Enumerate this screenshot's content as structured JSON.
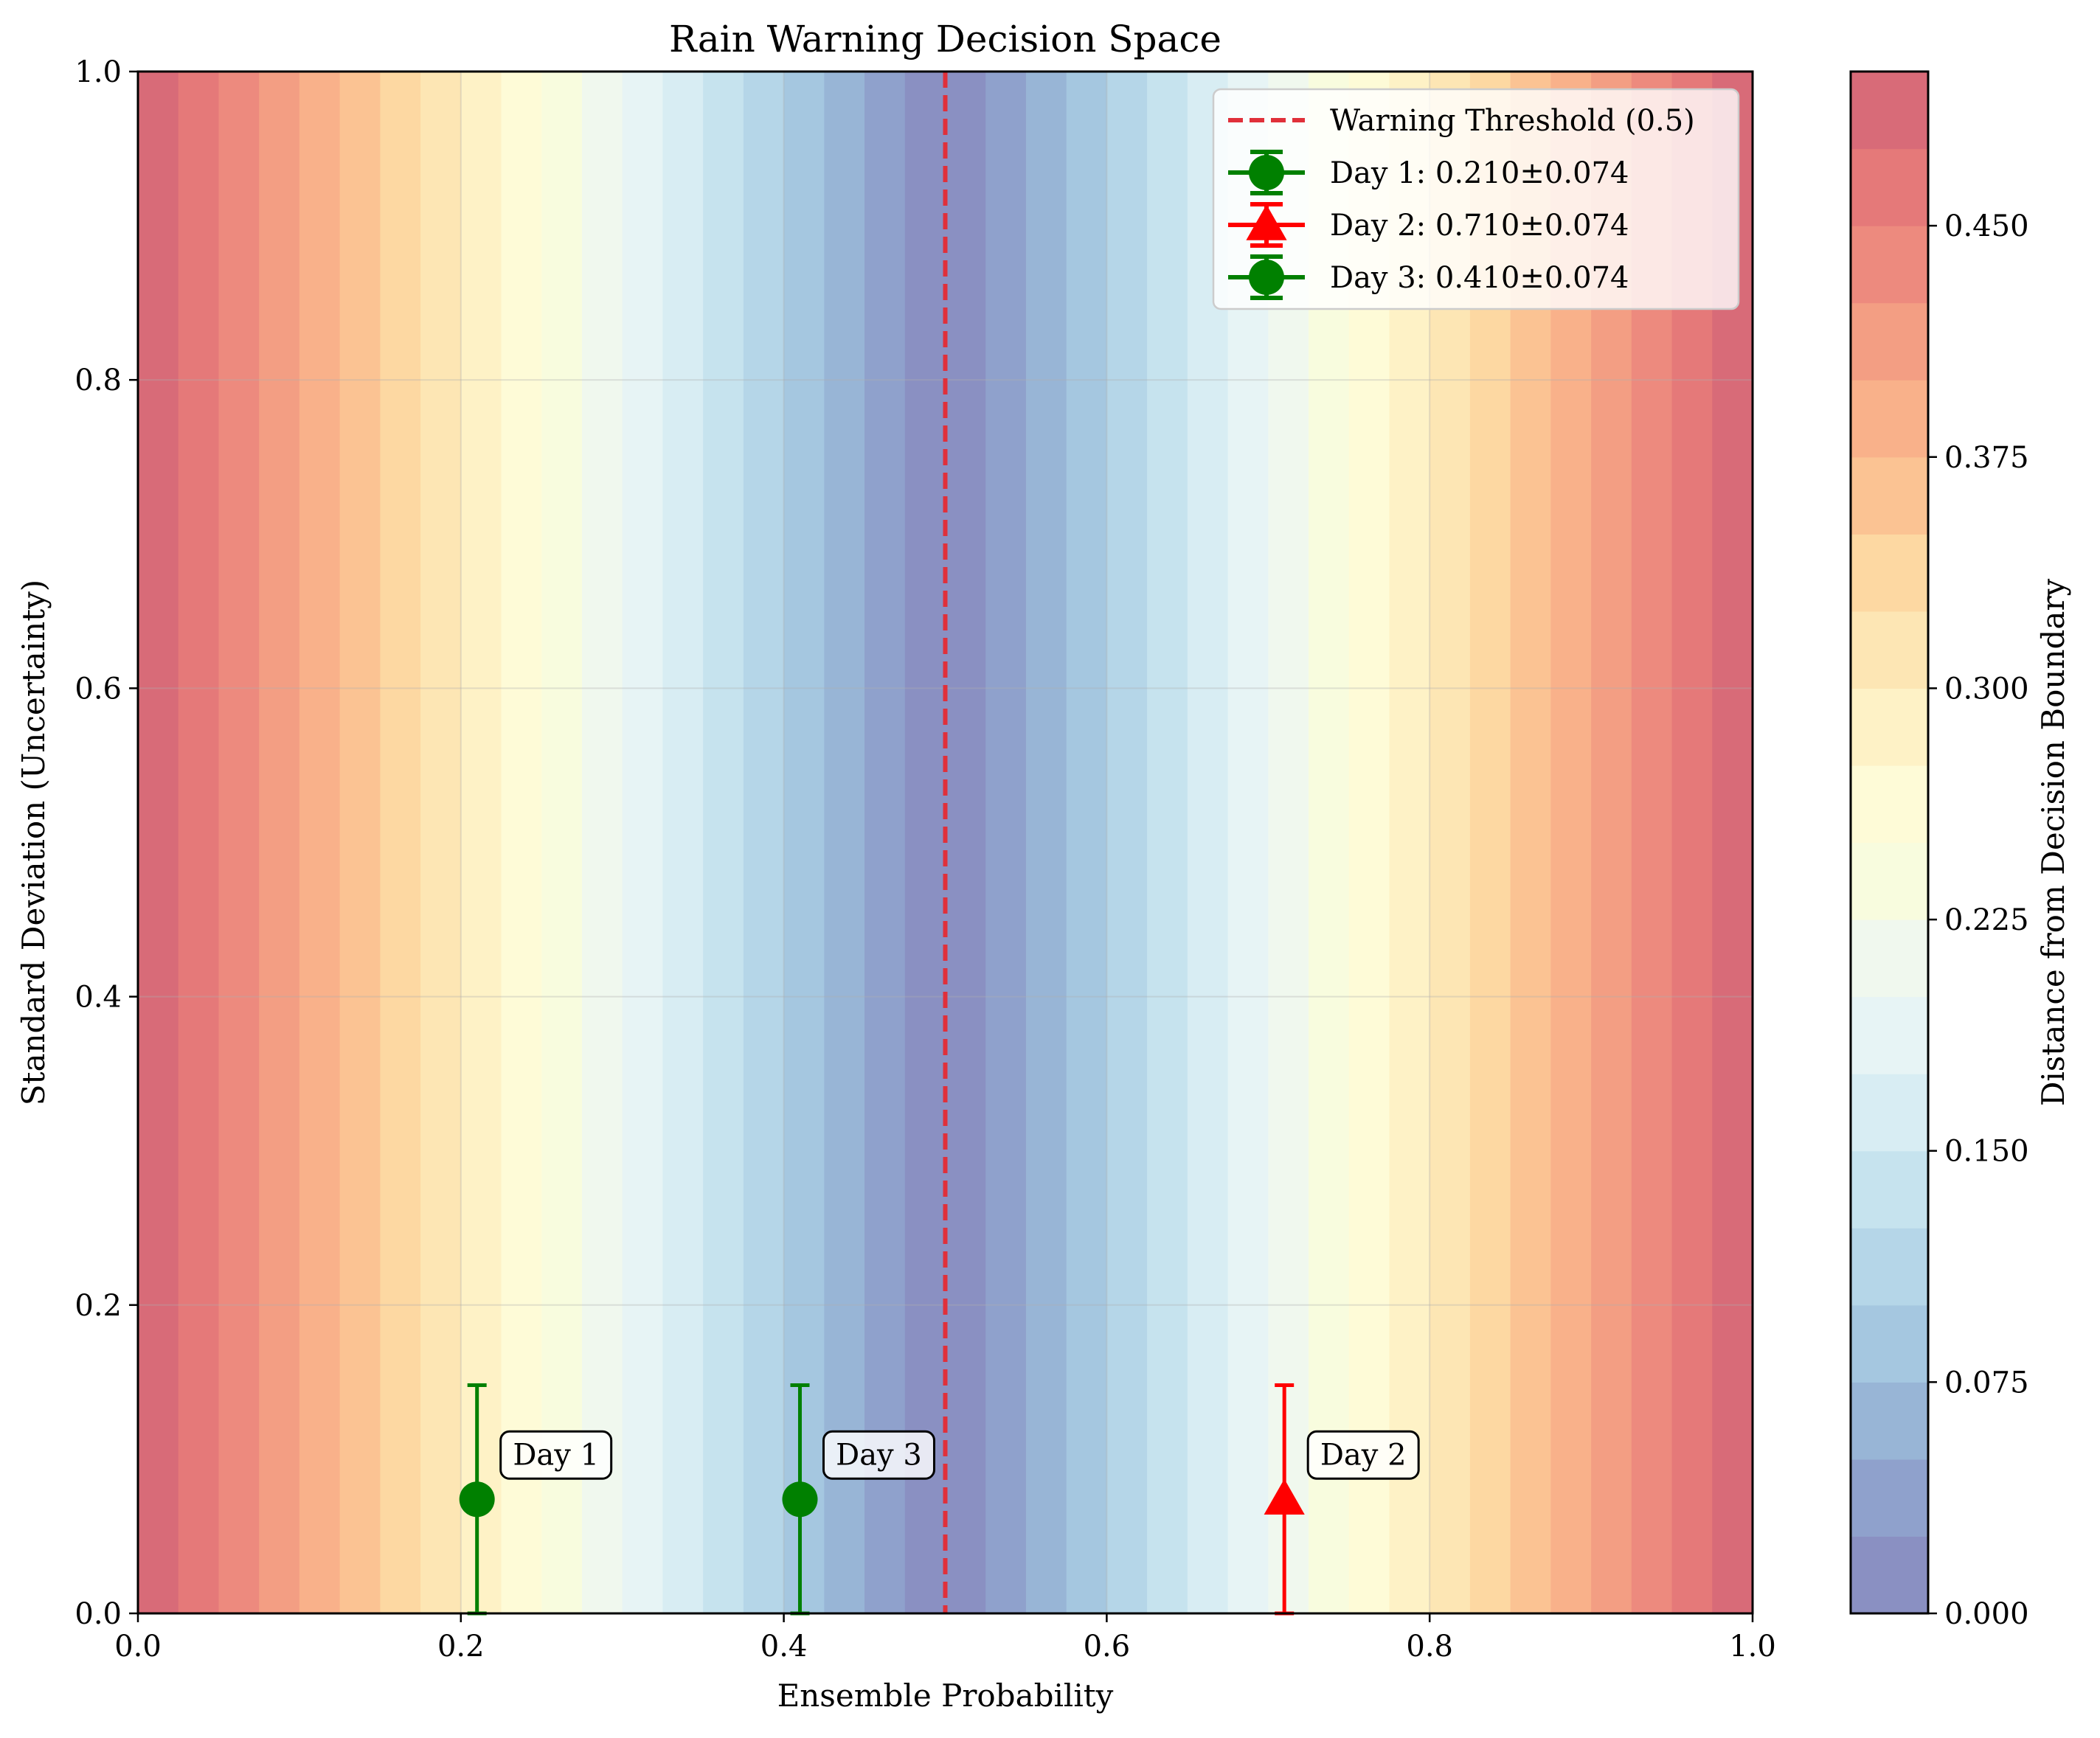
{
  "chart_data": {
    "type": "heatmap",
    "title": "Rain Warning Decision Space",
    "xlabel": "Ensemble Probability",
    "ylabel": "Standard Deviation (Uncertainty)",
    "xlim": [
      0.0,
      1.0
    ],
    "ylim": [
      0.0,
      1.0
    ],
    "x_ticks": [
      "0.0",
      "0.2",
      "0.4",
      "0.6",
      "0.8",
      "1.0"
    ],
    "y_ticks": [
      "0.0",
      "0.2",
      "0.4",
      "0.6",
      "0.8",
      "1.0"
    ],
    "grid": true,
    "heatmap": {
      "quantity": "abs(Ensemble Probability - 0.5)",
      "levels": [
        0.0,
        0.025,
        0.05,
        0.075,
        0.1,
        0.125,
        0.15,
        0.175,
        0.2,
        0.225,
        0.25,
        0.275,
        0.3,
        0.325,
        0.35,
        0.375,
        0.4,
        0.425,
        0.45,
        0.475,
        0.5
      ],
      "colors": [
        "#8a90c2",
        "#8fa1cc",
        "#98b5d6",
        "#a5c7e0",
        "#b5d6e8",
        "#c6e3ee",
        "#d8edf3",
        "#e7f4f5",
        "#f0f8ee",
        "#f8fcde",
        "#fefbd7",
        "#fef2c6",
        "#fde6b4",
        "#fdd8a2",
        "#fbc393",
        "#f9b18a",
        "#f39e83",
        "#ed8a7e",
        "#e57979",
        "#d86b78"
      ],
      "colorbar_label": "Distance from Decision Boundary",
      "colorbar_ticks": [
        "0.000",
        "0.075",
        "0.150",
        "0.225",
        "0.300",
        "0.375",
        "0.450"
      ],
      "colorbar_tick_values": [
        0.0,
        0.075,
        0.15,
        0.225,
        0.3,
        0.375,
        0.45
      ]
    },
    "threshold": {
      "x": 0.5,
      "color": "#e0303a",
      "label": "Warning Threshold (0.5)"
    },
    "series": [
      {
        "name": "Day 1: 0.210±0.074",
        "x": 0.21,
        "y": 0.074,
        "xerr": 0.074,
        "marker": "circle",
        "color": "#008000",
        "annotation": "Day 1"
      },
      {
        "name": "Day 2: 0.710±0.074",
        "x": 0.71,
        "y": 0.074,
        "xerr": 0.074,
        "marker": "triangle",
        "color": "#ff0000",
        "annotation": "Day 2"
      },
      {
        "name": "Day 3: 0.410±0.074",
        "x": 0.41,
        "y": 0.074,
        "xerr": 0.074,
        "marker": "circle",
        "color": "#008000",
        "annotation": "Day 3"
      }
    ],
    "legend_position": "upper right"
  }
}
